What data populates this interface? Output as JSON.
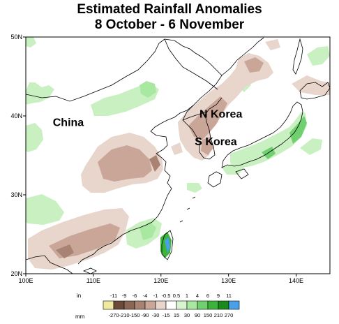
{
  "title": {
    "line1": "Estimated Rainfall Anomalies",
    "line2": "8 October - 6 November"
  },
  "map": {
    "lat_labels": [
      "50N",
      "40N",
      "30N",
      "20N"
    ],
    "lat_values": [
      50,
      40,
      30,
      20
    ],
    "lon_labels": [
      "100E",
      "110E",
      "120E",
      "130E",
      "140E"
    ],
    "lon_values": [
      100,
      110,
      120,
      130,
      140
    ],
    "lon_range": [
      100,
      145
    ],
    "lat_range": [
      20,
      50
    ],
    "countries": [
      {
        "name": "China",
        "lon": 104,
        "lat": 38.7
      },
      {
        "name": "N Korea",
        "lon": 125.7,
        "lat": 39.8
      },
      {
        "name": "S Korea",
        "lon": 125.0,
        "lat": 36.3
      }
    ]
  },
  "legend": {
    "unit_top": "in",
    "unit_bottom": "mm",
    "inch_labels": [
      "-11",
      "-9",
      "-6",
      "-4",
      "-1",
      "-0.5",
      "0.5",
      "1",
      "4",
      "6",
      "9",
      "11"
    ],
    "mm_labels": [
      "-270",
      "-210",
      "-150",
      "-90",
      "-30",
      "-15",
      "15",
      "30",
      "90",
      "150",
      "210",
      "270"
    ],
    "colors": [
      "#f0eaa0",
      "#6b4a3a",
      "#8a6655",
      "#a88373",
      "#c9a698",
      "#e8d5cc",
      "#ffffff",
      "#d8f5d0",
      "#a8e8a0",
      "#70d070",
      "#3cb43c",
      "#1a8a1a",
      "#4aa0e8"
    ]
  }
}
